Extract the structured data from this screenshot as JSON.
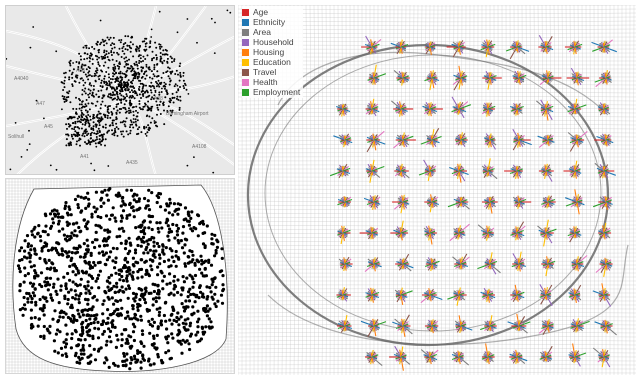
{
  "legend": {
    "items": [
      {
        "label": "Age",
        "color": "#d62728"
      },
      {
        "label": "Ethnicity",
        "color": "#1f77b4"
      },
      {
        "label": "Area",
        "color": "#7f7f7f"
      },
      {
        "label": "Household",
        "color": "#9467bd"
      },
      {
        "label": "Housing",
        "color": "#ff7f0e"
      },
      {
        "label": "Education",
        "color": "#ffbf00"
      },
      {
        "label": "Travel",
        "color": "#8c564b"
      },
      {
        "label": "Health",
        "color": "#e377c2"
      },
      {
        "label": "Employment",
        "color": "#2ca02c"
      }
    ]
  },
  "map": {
    "labels": [
      "A47",
      "A38",
      "A45",
      "A4040",
      "A38",
      "A41",
      "A435",
      "A4108",
      "Birmingham Airport",
      "Solihull"
    ]
  },
  "colors": {
    "map_background": "#e9e9e9",
    "roads": "#ffffff",
    "dots": "#000000",
    "grid": "#bdbdbd"
  }
}
